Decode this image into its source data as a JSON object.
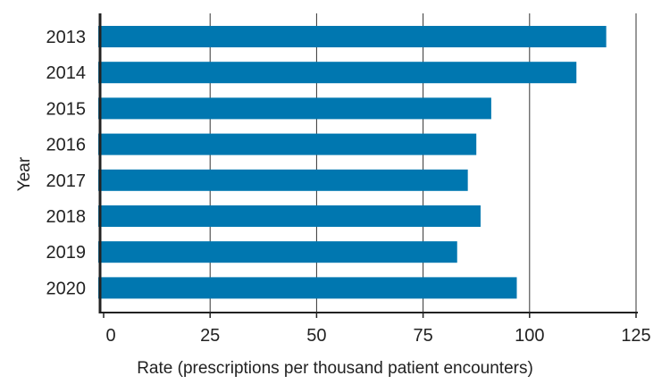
{
  "chart_data": {
    "type": "bar",
    "orientation": "horizontal",
    "title": "",
    "xlabel": "Rate (prescriptions per thousand patient encounters)",
    "ylabel": "Year",
    "categories": [
      "2013",
      "2014",
      "2015",
      "2016",
      "2017",
      "2018",
      "2019",
      "2020"
    ],
    "values": [
      118,
      111,
      91,
      87.5,
      85.5,
      88.5,
      83,
      97
    ],
    "xlim": [
      0,
      125
    ],
    "xticks": [
      0,
      25,
      50,
      75,
      100,
      125
    ],
    "grid": "vertical",
    "legend": "none",
    "bar_color": "#0077b0",
    "axis_color": "#222222",
    "grid_color": "#333333"
  }
}
